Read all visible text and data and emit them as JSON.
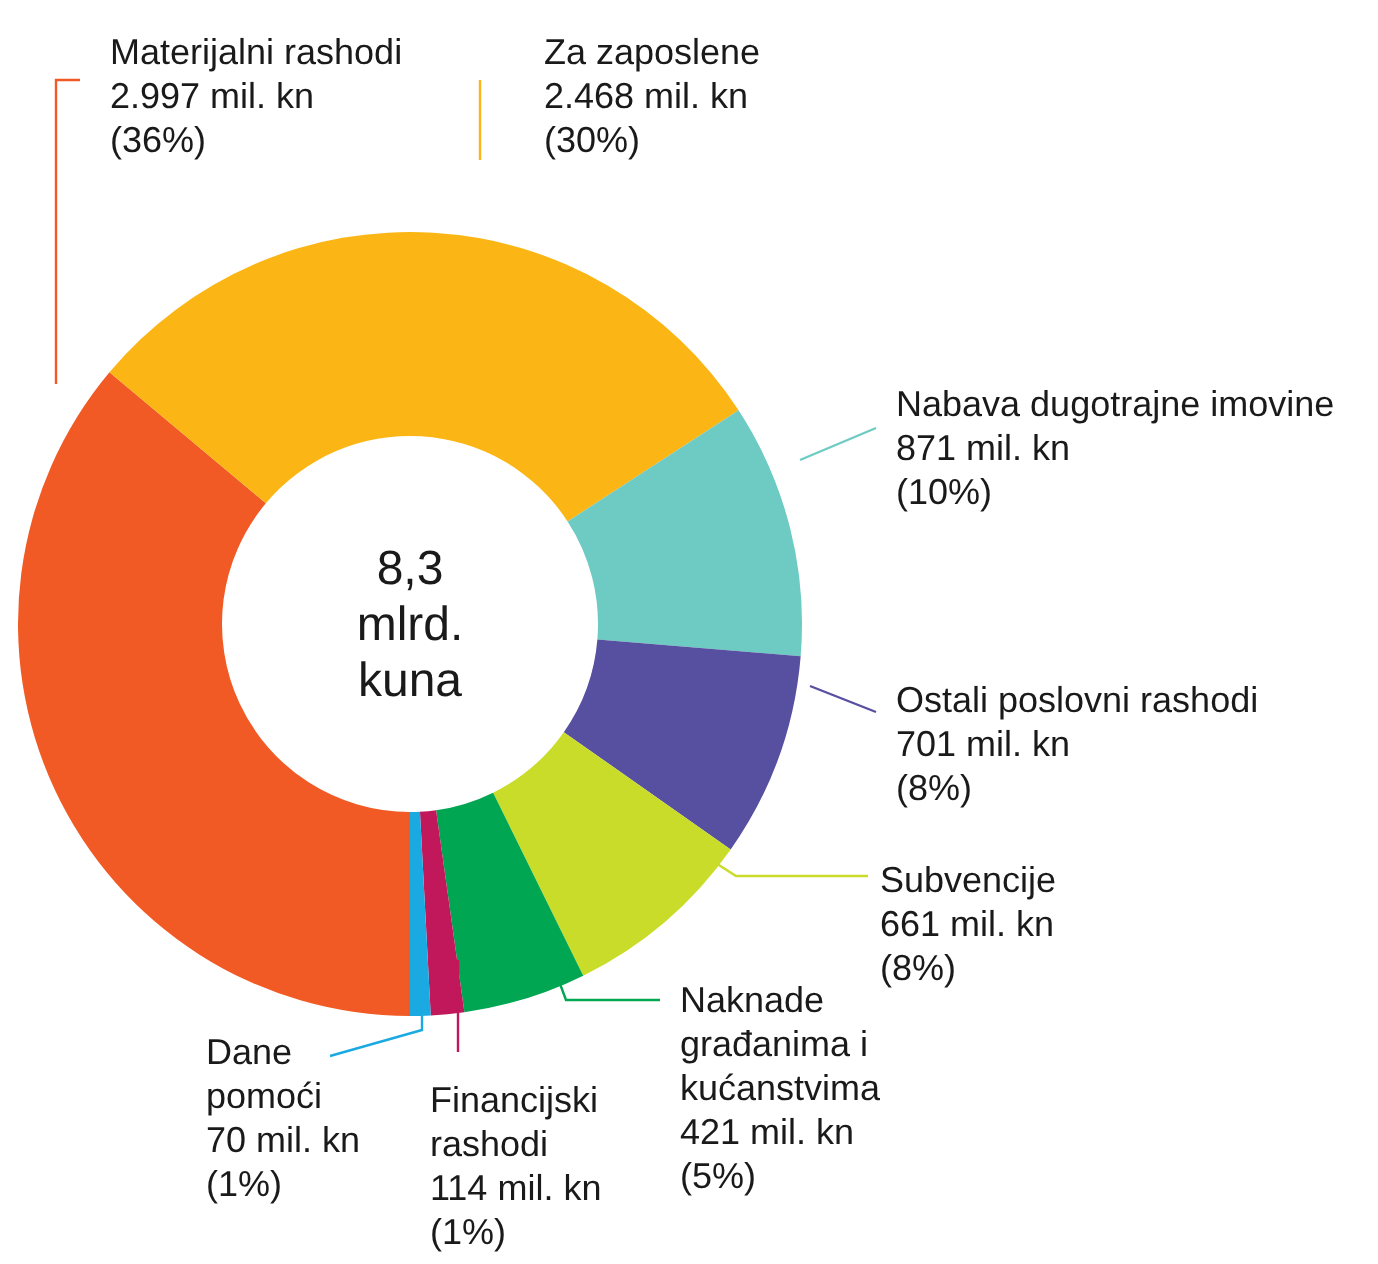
{
  "chart_data": {
    "type": "donut",
    "categories": [
      "Materijalni rashodi",
      "Za zaposlene",
      "Nabava dugotrajne imovine",
      "Ostali poslovni rashodi",
      "Subvencije",
      "Naknade građanima i kućanstvima",
      "Financijski rashodi",
      "Dane pomoći"
    ],
    "values": [
      2997,
      2468,
      871,
      701,
      661,
      421,
      114,
      70
    ],
    "colors": [
      "#f15a24",
      "#fbb615",
      "#6dcbc3",
      "#574fa0",
      "#c9dc2a",
      "#00a651",
      "#c1185b",
      "#1ba9e1"
    ],
    "value_labels": [
      "2.997 mil. kn\n(36%)",
      "2.468 mil. kn\n(30%)",
      "871 mil. kn\n(10%)",
      "701 mil. kn\n(8%)",
      "661 mil. kn\n(8%)",
      "421 mil. kn\n(5%)",
      "114 mil. kn\n(1%)",
      "70 mil. kn\n(1%)"
    ],
    "annotations": [
      "8,3\nmlrd.\nkuna"
    ]
  }
}
